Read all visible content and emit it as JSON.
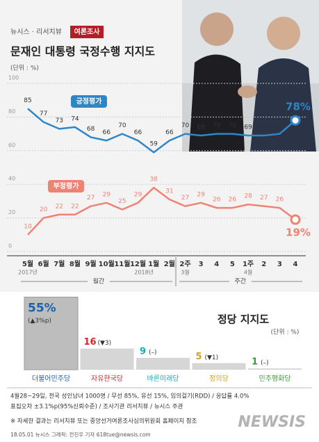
{
  "header": {
    "source": "뉴시스 · 리서치뷰",
    "badge": "여론조사"
  },
  "chart_data": [
    {
      "type": "line",
      "title": "문재인 대통령 국정수행 지지도",
      "unit": "(단위 : %)",
      "categories": [
        "5월",
        "6월",
        "7월",
        "8월",
        "9월",
        "10월",
        "11월",
        "12월",
        "1월",
        "2월",
        "2주",
        "3",
        "4",
        "5",
        "1주",
        "2",
        "3",
        "4"
      ],
      "sublabels": [
        "2017년",
        null,
        null,
        null,
        null,
        null,
        null,
        null,
        "2018년",
        null,
        "3월",
        null,
        null,
        null,
        "4월",
        null,
        null,
        null
      ],
      "groups": [
        "월간",
        "주간"
      ],
      "ylim": [
        0,
        100
      ],
      "yticks": [
        0,
        20,
        40,
        60,
        80,
        100
      ],
      "grid": true,
      "series": [
        {
          "name": "긍정평가",
          "color": "#2f86c6",
          "values": [
            85,
            77,
            73,
            74,
            68,
            66,
            70,
            66,
            59,
            66,
            70,
            69,
            70,
            70,
            69,
            69,
            70,
            78
          ],
          "value_labels": [
            "85",
            "77",
            "73",
            "74",
            "68",
            "66",
            "70",
            "66",
            "59",
            "66",
            "70",
            "69",
            "70",
            "70",
            "69",
            "69",
            "70",
            "78%"
          ]
        },
        {
          "name": "부정평가",
          "color": "#ef8373",
          "values": [
            10,
            20,
            22,
            22,
            27,
            29,
            25,
            29,
            38,
            31,
            27,
            29,
            26,
            26,
            28,
            27,
            26,
            19
          ],
          "value_labels": [
            "10",
            "20",
            "22",
            "22",
            "27",
            "29",
            "25",
            "29",
            "38",
            "31",
            "27",
            "29",
            "26",
            "26",
            "28",
            "27",
            "26",
            "19%"
          ]
        }
      ]
    },
    {
      "type": "bar",
      "title": "정당 지지도",
      "unit": "(단위 : %)",
      "categories": [
        "더불어민주당",
        "자유한국당",
        "바른미래당",
        "정의당",
        "민주평화당"
      ],
      "values": [
        55,
        16,
        9,
        5,
        1
      ],
      "value_labels": [
        "55%",
        "16",
        "9",
        "5",
        "1"
      ],
      "changes": [
        "(▲3%p)",
        "(▼3)",
        "(–)",
        "(▼1)",
        "(–)"
      ],
      "colors": [
        "#1d5fa8",
        "#d7262a",
        "#21a6b5",
        "#d4a017",
        "#3a9a3a"
      ]
    }
  ],
  "footer": {
    "notes": [
      "4월28~29일, 전국 성인남녀 1000명 / 무선 85%, 유선 15%, 임의걸기(RDD) / 응답률 4.0%",
      "표집오차 ±3.1%p(95%신뢰수준) / 조사기관 리서치뷰 / 뉴시스 주관"
    ],
    "reference": "※ 자세한 결과는 리서치뷰 또는 중앙선거여론조사심의위원회 홈페이지 참조",
    "credit": "18.05.01 뉴시스 그래픽: 전진우 기자 618tue@newsis.com",
    "watermark": "NEWSIS"
  }
}
